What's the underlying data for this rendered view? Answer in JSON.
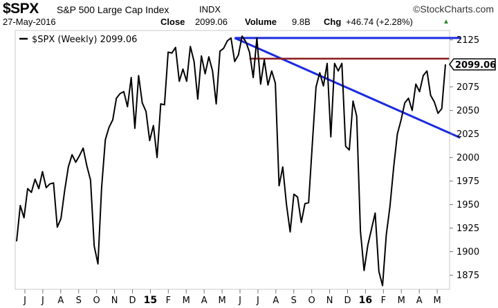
{
  "header": {
    "symbol": "$SPX",
    "name": "S&P 500 Large Cap Index",
    "exchange": "INDX",
    "brand": "©StockCharts.com",
    "date": "27-May-2016",
    "close_label": "Close",
    "close_value": "2099.06",
    "volume_label": "Volume",
    "volume_value": "9.8B",
    "chg_label": "Chg",
    "chg_value": "+46.74 (+2.28%)",
    "chg_arrow": "▲"
  },
  "colors": {
    "price_line": "#000000",
    "trend_line": "#1a2be0",
    "resistance_line": "#8b1a1a",
    "up": "#2a8a2a"
  },
  "chart_data": {
    "type": "line",
    "legend": "$SPX (Weekly) 2099.06",
    "legend_position": "top-left",
    "last_value_label": "2099.06",
    "ylim": [
      1860,
      2135
    ],
    "y_ticks": [
      1875,
      1900,
      1925,
      1950,
      1975,
      2000,
      2025,
      2050,
      2075,
      2100,
      2125
    ],
    "x_ticks": [
      "J",
      "J",
      "A",
      "S",
      "O",
      "N",
      "D",
      "15",
      "F",
      "M",
      "A",
      "M",
      "J",
      "J",
      "A",
      "S",
      "O",
      "N",
      "D",
      "16",
      "F",
      "M",
      "A",
      "M"
    ],
    "x_ticks_bold": [
      "15",
      "16"
    ],
    "grid": false,
    "series": [
      {
        "values": [
          1911,
          1949,
          1936,
          1967,
          1963,
          1977,
          1967,
          1985,
          1968,
          1972,
          1973,
          1926,
          1935,
          1965,
          1990,
          2003,
          1995,
          2002,
          2010,
          1991,
          1976,
          1906,
          1887,
          1968,
          2019,
          2032,
          2040,
          2063,
          2068,
          2070,
          2054,
          2085,
          2031,
          2087,
          2058,
          2049,
          2018,
          2034,
          2000,
          2057,
          2056,
          2112,
          2111,
          2117,
          2081,
          2094,
          2081,
          2118,
          2102,
          2062,
          2108,
          2089,
          2107,
          2092,
          2057,
          2113,
          2116,
          2124,
          2127,
          2102,
          2109,
          2129,
          2123,
          2112,
          2085,
          2127,
          2078,
          2104,
          2077,
          2092,
          2079,
          1970,
          1990,
          1950,
          1921,
          1961,
          1958,
          1931,
          1951,
          1952,
          2015,
          2075,
          2090,
          2076,
          2100,
          2022,
          2100,
          2092,
          2100,
          2012,
          2008,
          2060,
          2044,
          1922,
          1880,
          1907,
          1924,
          1941,
          1879,
          1864,
          1918,
          1948,
          1990,
          2025,
          2040,
          2058,
          2063,
          2050,
          2078,
          2070,
          2087,
          2092,
          2066,
          2059,
          2047,
          2052,
          2099
        ]
      }
    ],
    "annotations": [
      {
        "type": "trendline",
        "color": "blue",
        "from": [
          59,
          2127
        ],
        "to": [
          120,
          2127
        ]
      },
      {
        "type": "trendline",
        "color": "blue",
        "from": [
          59,
          2127
        ],
        "to": [
          120,
          2021
        ]
      },
      {
        "type": "trendline",
        "color": "darkred",
        "from": [
          63,
          2105
        ],
        "to": [
          117,
          2105
        ]
      }
    ]
  }
}
